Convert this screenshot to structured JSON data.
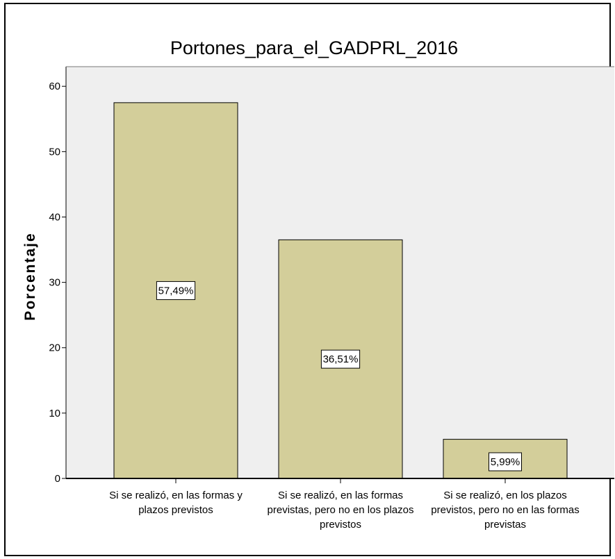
{
  "chart_data": {
    "type": "bar",
    "title": "Portones_para_el_GADPRL_2016",
    "ylabel": "Porcentaje",
    "xlabel": "",
    "ylim": [
      0,
      63
    ],
    "yticks": [
      0,
      10,
      20,
      30,
      40,
      50,
      60
    ],
    "grid": false,
    "categories": [
      [
        "Si se realizó, en las formas y",
        "plazos previstos"
      ],
      [
        "Si se realizó, en las formas",
        "previstas, pero no en los plazos",
        "previstos"
      ],
      [
        "Si se realizó, en los plazos",
        "previstos, pero no en las formas",
        "previstas"
      ]
    ],
    "values": [
      57.49,
      36.51,
      5.99
    ],
    "data_labels": [
      "57,49%",
      "36,51%",
      "5,99%"
    ],
    "colors": {
      "plot_background": "#efefef",
      "bar_fill": "#d3ce9a",
      "bar_stroke": "#000000"
    }
  }
}
